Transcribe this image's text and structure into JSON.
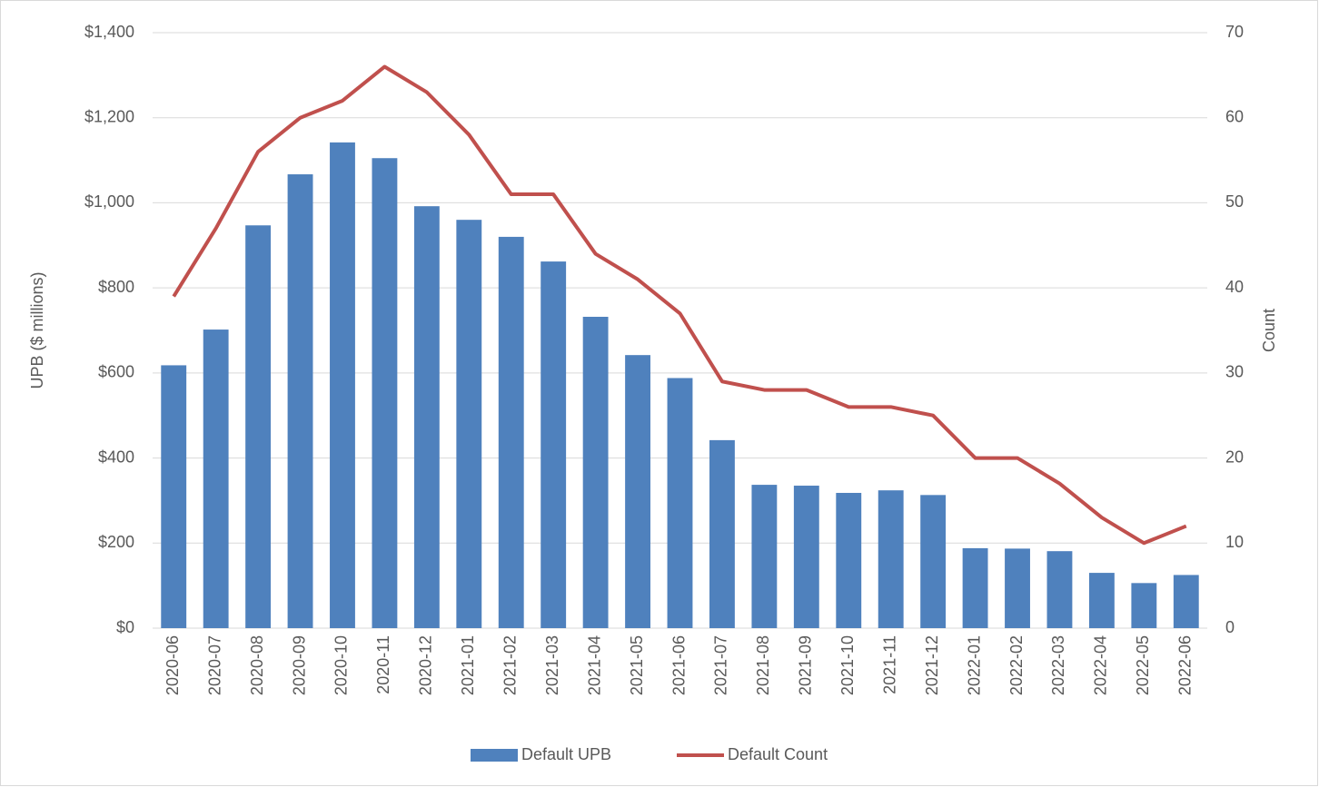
{
  "chart_data": {
    "type": "bar_line",
    "categories": [
      "2020-06",
      "2020-07",
      "2020-08",
      "2020-09",
      "2020-10",
      "2020-11",
      "2020-12",
      "2021-01",
      "2021-02",
      "2021-03",
      "2021-04",
      "2021-05",
      "2021-06",
      "2021-07",
      "2021-08",
      "2021-09",
      "2021-10",
      "2021-11",
      "2021-12",
      "2022-01",
      "2022-02",
      "2022-03",
      "2022-04",
      "2022-05",
      "2022-06"
    ],
    "series": [
      {
        "name": "Default UPB",
        "type": "bar",
        "color": "#4f81bd",
        "values": [
          618,
          702,
          947,
          1067,
          1142,
          1105,
          992,
          960,
          920,
          862,
          732,
          642,
          588,
          442,
          337,
          335,
          318,
          324,
          313,
          188,
          187,
          181,
          130,
          106,
          125
        ]
      },
      {
        "name": "Default Count",
        "type": "line",
        "axis": "y2",
        "color": "#c0504d",
        "values": [
          39,
          47,
          56,
          60,
          62,
          66,
          63,
          58,
          51,
          51,
          44,
          41,
          37,
          29,
          28,
          28,
          26,
          26,
          25,
          20,
          20,
          17,
          13,
          10,
          12
        ]
      }
    ],
    "ylabel": "UPB ($ millions)",
    "y2label": "Count",
    "ylim": [
      0,
      1400
    ],
    "yticks": [
      {
        "value": 0,
        "label": "$0"
      },
      {
        "value": 200,
        "label": "$200"
      },
      {
        "value": 400,
        "label": "$400"
      },
      {
        "value": 600,
        "label": "$600"
      },
      {
        "value": 800,
        "label": "$800"
      },
      {
        "value": 1000,
        "label": "$1,000"
      },
      {
        "value": 1200,
        "label": "$1,200"
      },
      {
        "value": 1400,
        "label": "$1,400"
      }
    ],
    "y2lim": [
      0,
      70
    ],
    "y2ticks": [
      0,
      10,
      20,
      30,
      40,
      50,
      60,
      70
    ],
    "grid": true,
    "legend": "bottom"
  }
}
